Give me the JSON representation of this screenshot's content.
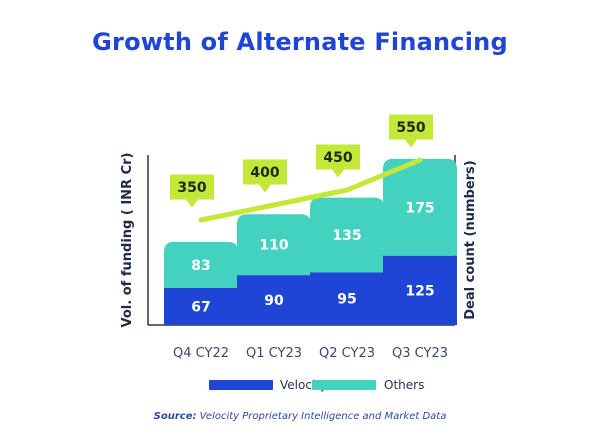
{
  "title": "Growth of Alternate Financing",
  "source_label": "Source:",
  "source_text": " Velocity Proprietary Intelligence and Market Data",
  "colors": {
    "velocity": "#1f45d6",
    "others": "#43d2bf",
    "line": "#c3e838",
    "axis": "#2b3550",
    "title": "#1f45d6"
  },
  "chart_data": {
    "type": "bar",
    "stacked": true,
    "categories": [
      "Q4 CY22",
      "Q1 CY23",
      "Q2 CY23",
      "Q3 CY23"
    ],
    "series": [
      {
        "name": "Velocity",
        "values": [
          67,
          90,
          95,
          125
        ]
      },
      {
        "name": "Others",
        "values": [
          83,
          110,
          135,
          175
        ]
      }
    ],
    "line_series": {
      "values": [
        350,
        400,
        450,
        550
      ]
    },
    "ylabel": "Vol. of funding ( INR Cr)",
    "y2label": "Deal count (numbers)",
    "ylim": [
      0,
      325
    ],
    "y2lim": [
      0,
      600
    ],
    "grid": false,
    "legend": "bottom"
  }
}
